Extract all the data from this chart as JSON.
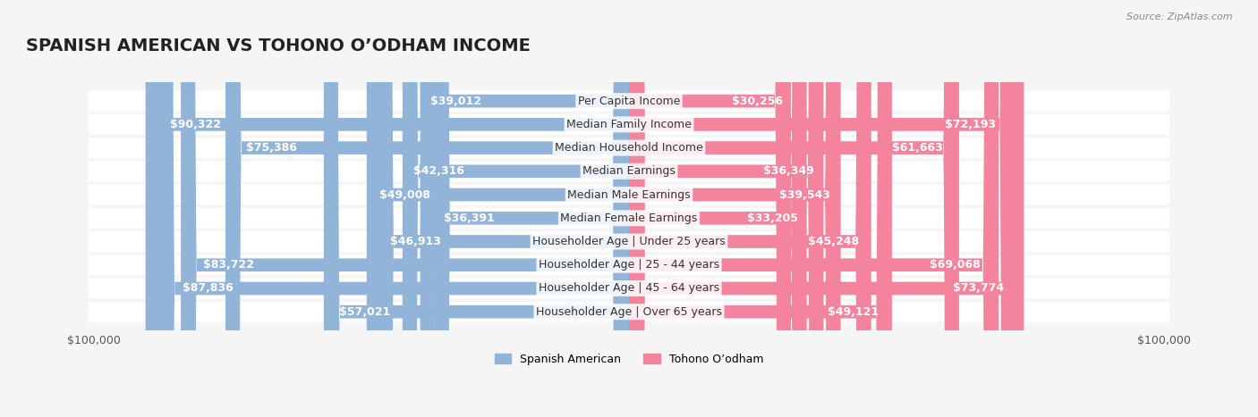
{
  "title": "SPANISH AMERICAN VS TOHONO O’ODHAM INCOME",
  "source": "Source: ZipAtlas.com",
  "categories": [
    "Per Capita Income",
    "Median Family Income",
    "Median Household Income",
    "Median Earnings",
    "Median Male Earnings",
    "Median Female Earnings",
    "Householder Age | Under 25 years",
    "Householder Age | 25 - 44 years",
    "Householder Age | 45 - 64 years",
    "Householder Age | Over 65 years"
  ],
  "left_values": [
    39012,
    90322,
    75386,
    42316,
    49008,
    36391,
    46913,
    83722,
    87836,
    57021
  ],
  "right_values": [
    30256,
    72193,
    61663,
    36349,
    39543,
    33205,
    45248,
    69068,
    73774,
    49121
  ],
  "left_labels": [
    "$39,012",
    "$90,322",
    "$75,386",
    "$42,316",
    "$49,008",
    "$36,391",
    "$46,913",
    "$83,722",
    "$87,836",
    "$57,021"
  ],
  "right_labels": [
    "$30,256",
    "$72,193",
    "$61,663",
    "$36,349",
    "$39,543",
    "$33,205",
    "$45,248",
    "$69,068",
    "$73,774",
    "$49,121"
  ],
  "left_color": "#92b4d8",
  "right_color": "#f4839e",
  "left_color_dark": "#6699cc",
  "right_color_dark": "#f06080",
  "left_label_inside": [
    false,
    true,
    true,
    false,
    false,
    false,
    false,
    true,
    true,
    false
  ],
  "right_label_inside": [
    false,
    true,
    true,
    false,
    false,
    false,
    false,
    true,
    true,
    false
  ],
  "max_value": 100000,
  "legend_left": "Spanish American",
  "legend_right": "Tohono O’odham",
  "background_color": "#f5f5f5",
  "bar_bg_color": "#e8e8e8",
  "title_fontsize": 14,
  "label_fontsize": 9,
  "category_fontsize": 9
}
